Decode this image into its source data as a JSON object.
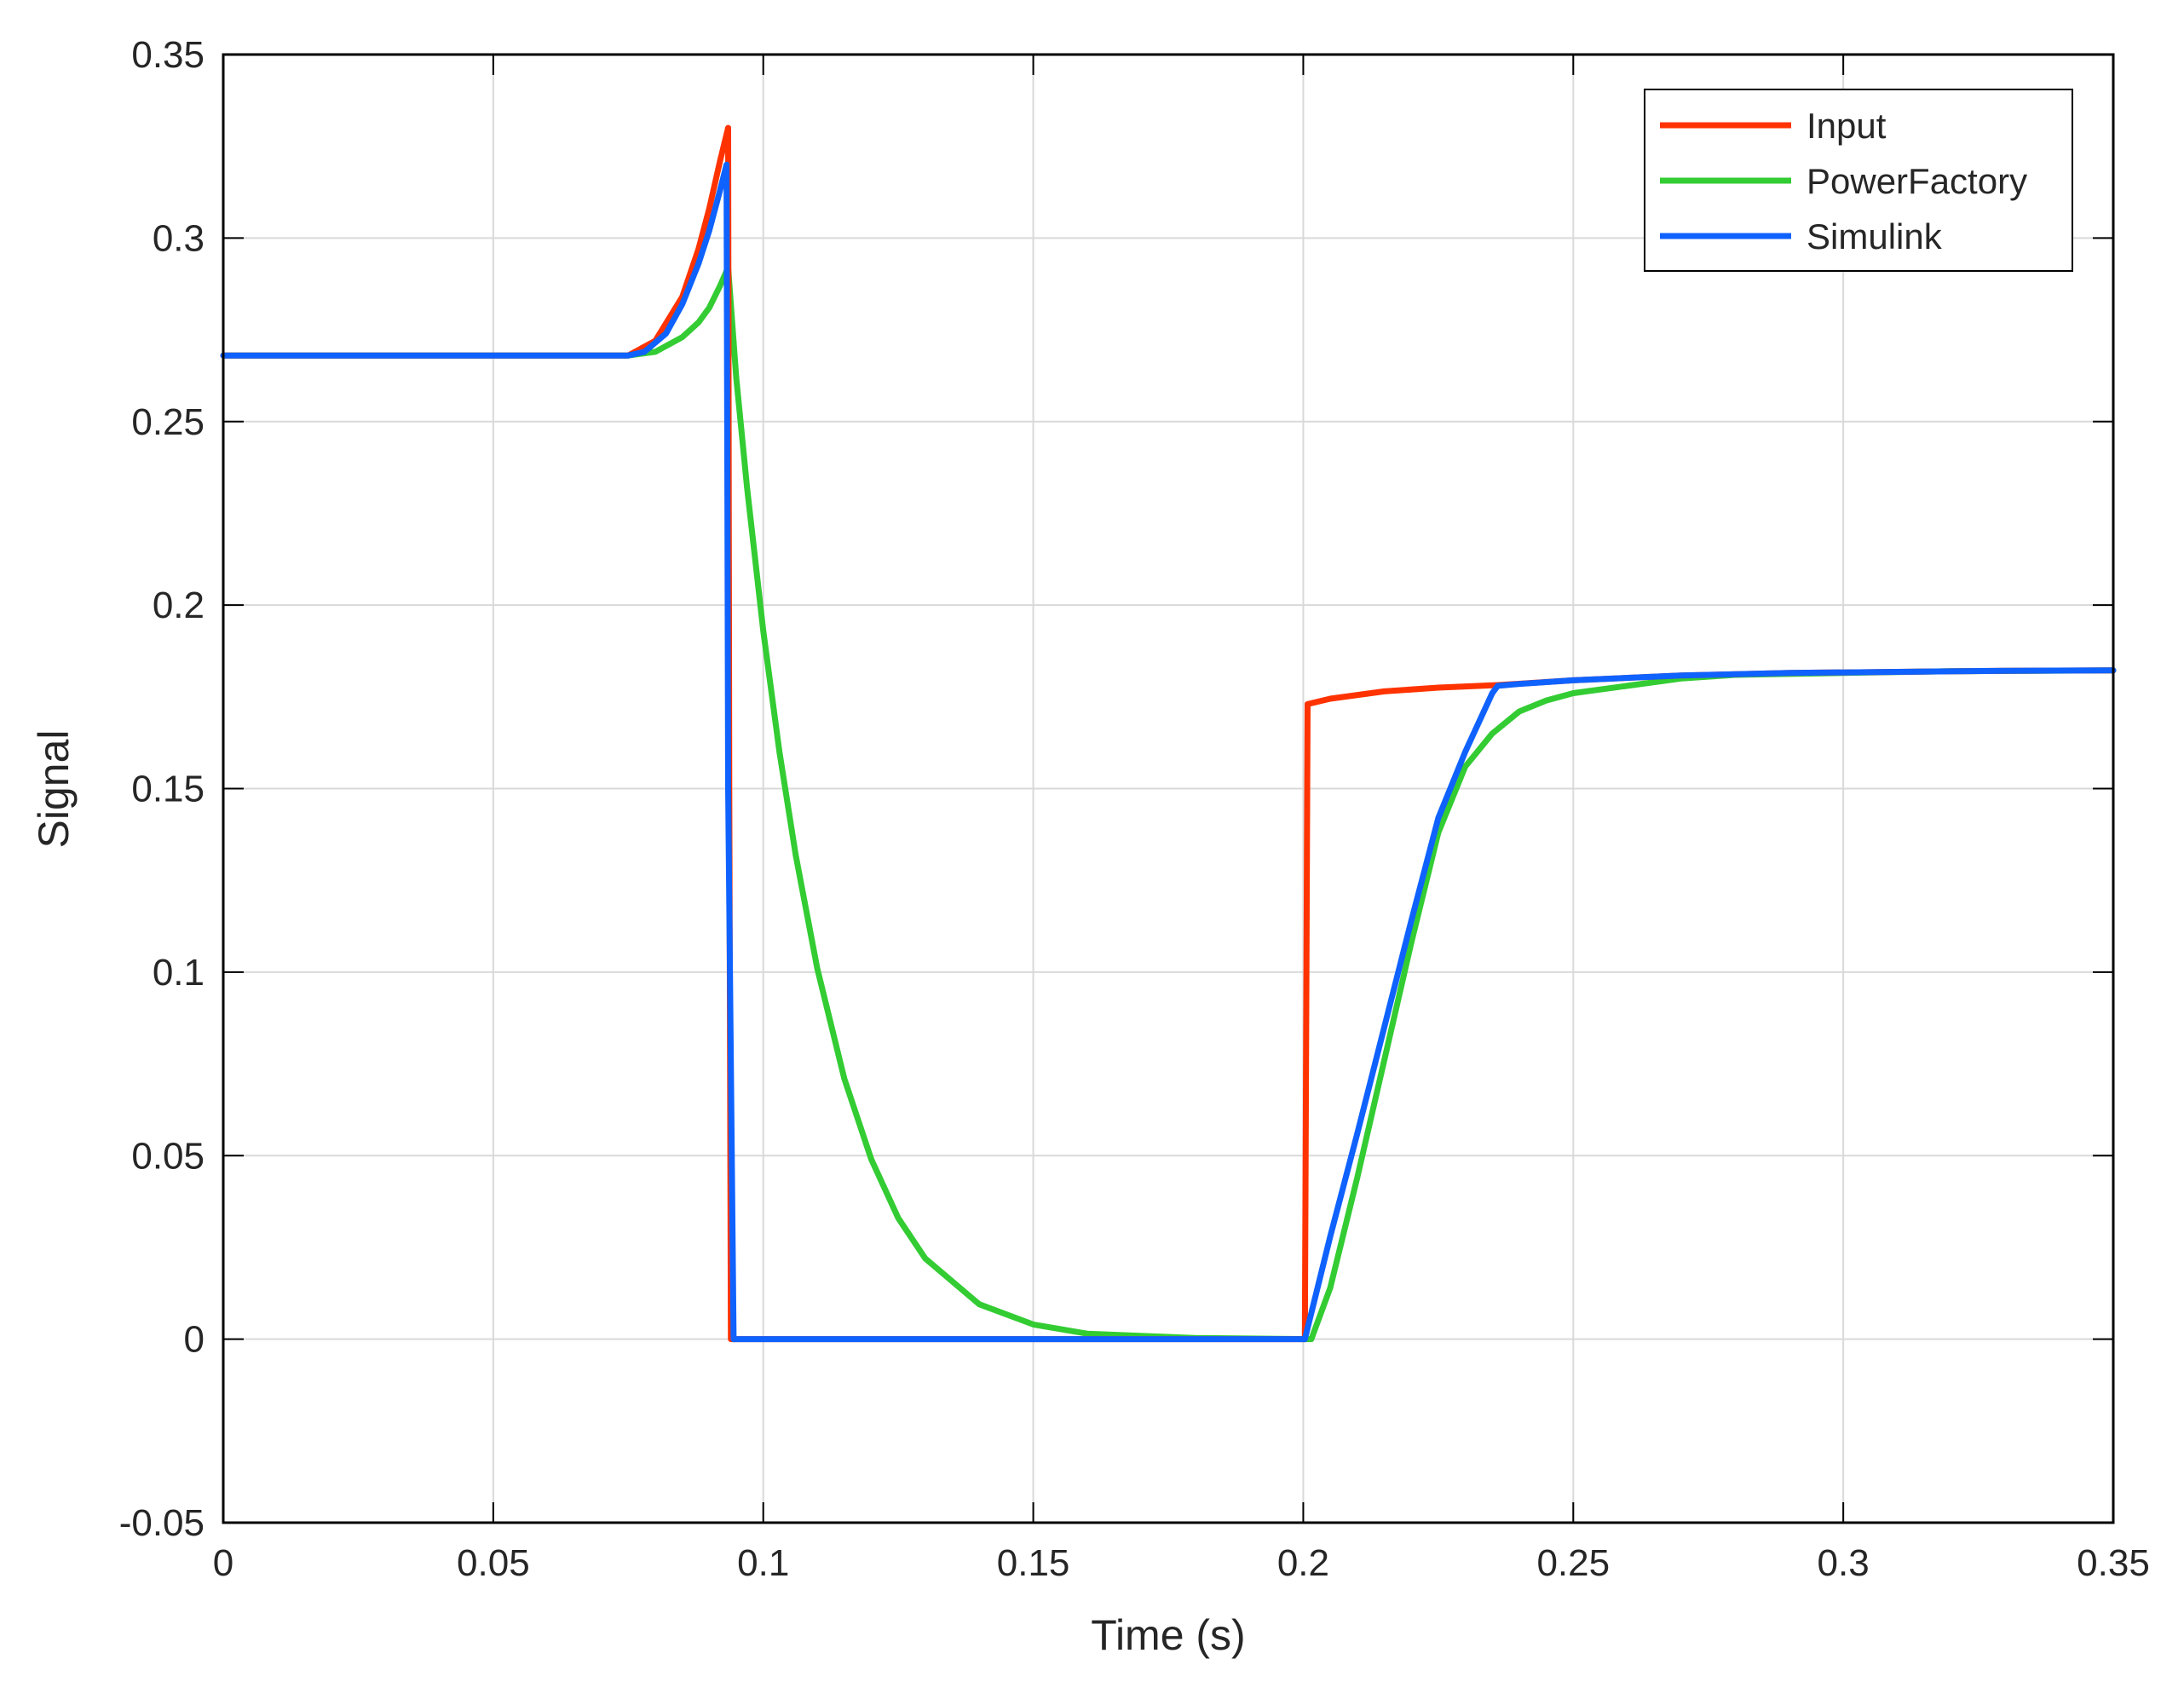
{
  "chart_data": {
    "type": "line",
    "title": "",
    "xlabel": "Time (s)",
    "ylabel": "Signal",
    "xlim": [
      0,
      0.35
    ],
    "ylim": [
      -0.05,
      0.35
    ],
    "xticks": [
      0,
      0.05,
      0.1,
      0.15,
      0.2,
      0.25,
      0.3,
      0.35
    ],
    "xtick_labels": [
      "0",
      "0.05",
      "0.1",
      "0.15",
      "0.2",
      "0.25",
      "0.3",
      "0.35"
    ],
    "yticks": [
      -0.05,
      0,
      0.05,
      0.1,
      0.15,
      0.2,
      0.25,
      0.3,
      0.35
    ],
    "ytick_labels": [
      "-0.05",
      "0",
      "0.05",
      "0.1",
      "0.15",
      "0.2",
      "0.25",
      "0.3",
      "0.35"
    ],
    "grid": true,
    "legend_position": "top-right",
    "series": [
      {
        "name": "Input",
        "color": "#ff3300",
        "x": [
          0,
          0.075,
          0.08,
          0.085,
          0.088,
          0.09,
          0.092,
          0.0935,
          0.0937,
          0.094,
          0.2003,
          0.2008,
          0.205,
          0.215,
          0.225,
          0.236,
          0.25,
          0.27,
          0.29,
          0.31,
          0.33,
          0.35
        ],
        "y": [
          0.268,
          0.268,
          0.272,
          0.284,
          0.297,
          0.308,
          0.321,
          0.33,
          0.15,
          0.0,
          0.0,
          0.173,
          0.1745,
          0.1765,
          0.1775,
          0.1782,
          0.1795,
          0.1808,
          0.1815,
          0.1818,
          0.1821,
          0.1822
        ]
      },
      {
        "name": "PowerFactory",
        "color": "#33cc33",
        "x": [
          0,
          0.075,
          0.08,
          0.085,
          0.088,
          0.09,
          0.092,
          0.0935,
          0.095,
          0.097,
          0.1,
          0.103,
          0.106,
          0.11,
          0.115,
          0.12,
          0.125,
          0.13,
          0.14,
          0.15,
          0.16,
          0.18,
          0.2005,
          0.2015,
          0.205,
          0.21,
          0.215,
          0.22,
          0.225,
          0.23,
          0.235,
          0.24,
          0.245,
          0.25,
          0.26,
          0.27,
          0.28,
          0.3,
          0.32,
          0.35
        ],
        "y": [
          0.268,
          0.268,
          0.269,
          0.273,
          0.277,
          0.281,
          0.287,
          0.292,
          0.262,
          0.232,
          0.193,
          0.16,
          0.132,
          0.101,
          0.071,
          0.049,
          0.033,
          0.022,
          0.0095,
          0.004,
          0.0015,
          0.0003,
          0.0,
          0.0,
          0.014,
          0.044,
          0.076,
          0.108,
          0.138,
          0.156,
          0.165,
          0.171,
          0.174,
          0.176,
          0.178,
          0.18,
          0.181,
          0.1815,
          0.182,
          0.1822
        ]
      },
      {
        "name": "Simulink",
        "color": "#0f62fe",
        "x": [
          0,
          0.075,
          0.078,
          0.082,
          0.085,
          0.088,
          0.09,
          0.092,
          0.0932,
          0.0935,
          0.0945,
          0.2003,
          0.2008,
          0.205,
          0.21,
          0.215,
          0.22,
          0.225,
          0.23,
          0.235,
          0.236,
          0.24,
          0.25,
          0.27,
          0.29,
          0.31,
          0.33,
          0.35
        ],
        "y": [
          0.268,
          0.268,
          0.269,
          0.274,
          0.282,
          0.293,
          0.302,
          0.313,
          0.32,
          0.15,
          0.0,
          0.0,
          0.003,
          0.028,
          0.056,
          0.085,
          0.114,
          0.142,
          0.16,
          0.176,
          0.178,
          0.1785,
          0.1795,
          0.1808,
          0.1815,
          0.1818,
          0.1821,
          0.1822
        ]
      }
    ]
  }
}
